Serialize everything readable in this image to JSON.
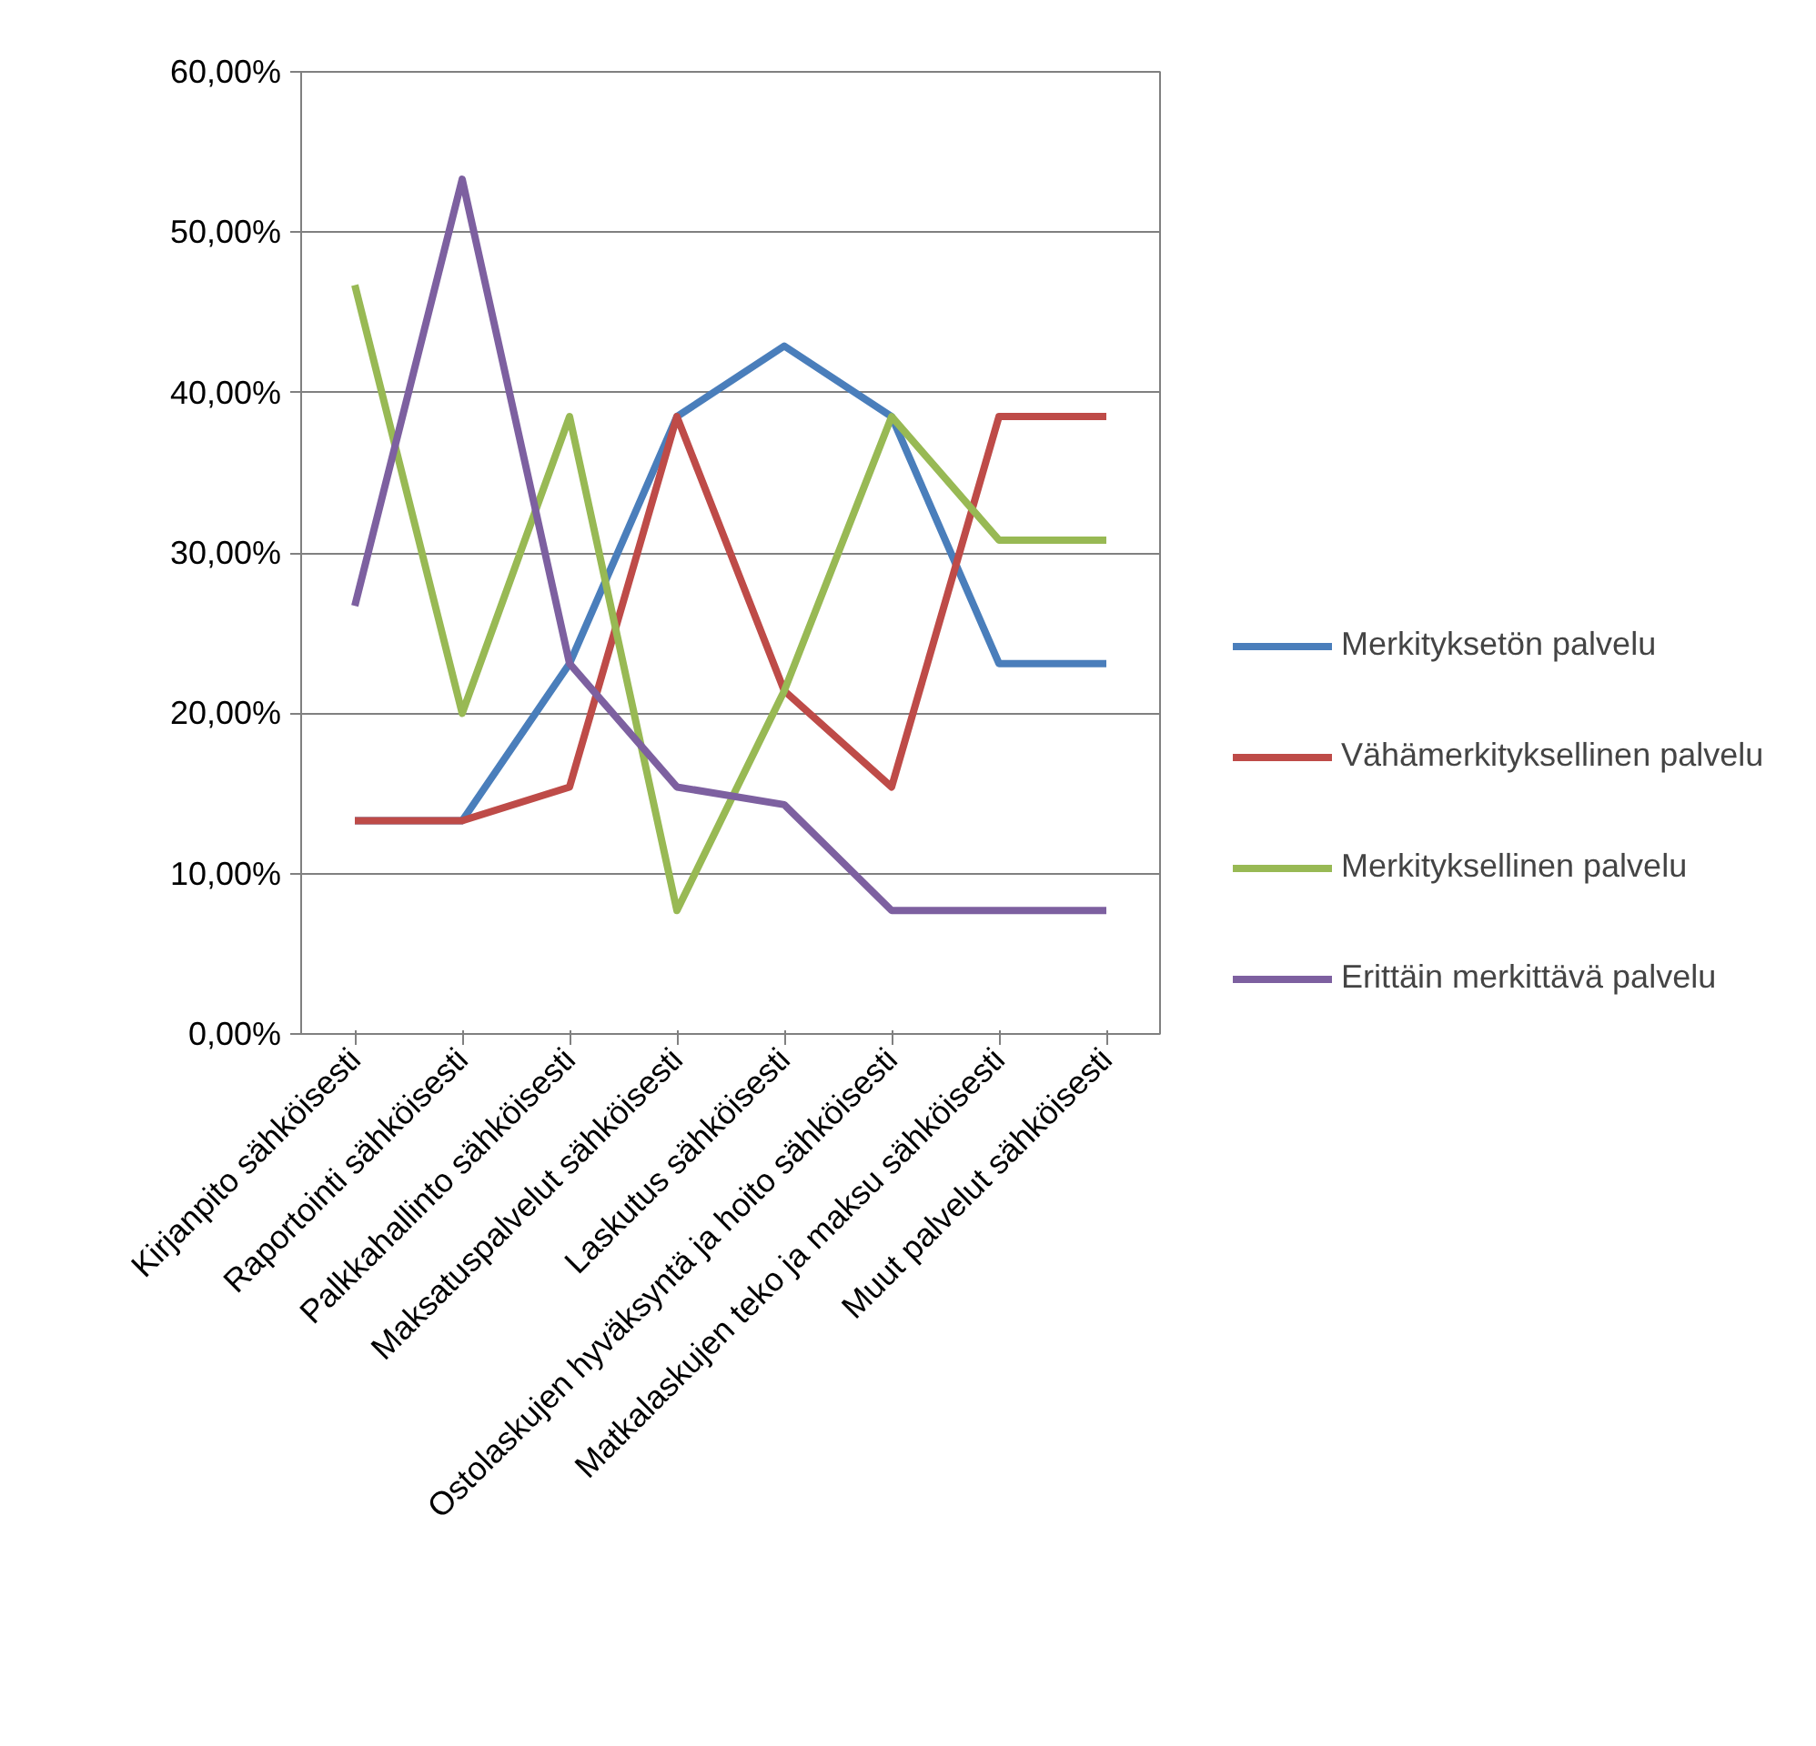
{
  "chart_data": {
    "type": "line",
    "categories": [
      "Kirjanpito sähköisesti",
      "Raportointi sähköisesti",
      "Palkkahallinto sähköisesti",
      "Maksatuspalvelut sähköisesti",
      "Laskutus sähköisesti",
      "Ostolaskujen hyväksyntä ja hoito sähköisesti",
      "Matkalaskujen teko ja maksu sähköisesti",
      "Muut palvelut sähköisesti"
    ],
    "series": [
      {
        "name": "Merkityksetön palvelu",
        "color": "#4a7ebb",
        "values": [
          13.3,
          13.3,
          23.1,
          38.5,
          42.9,
          38.5,
          23.1,
          23.1
        ]
      },
      {
        "name": "Vähämerkityksellinen palvelu",
        "color": "#be4b48",
        "values": [
          13.3,
          13.3,
          15.4,
          38.5,
          21.4,
          15.4,
          38.5,
          38.5
        ]
      },
      {
        "name": "Merkityksellinen palvelu",
        "color": "#98b954",
        "values": [
          46.7,
          20.0,
          38.5,
          7.7,
          21.4,
          38.5,
          30.8,
          30.8
        ]
      },
      {
        "name": "Erittäin merkittävä palvelu",
        "color": "#7d60a0",
        "values": [
          26.7,
          53.3,
          23.1,
          15.4,
          14.3,
          7.7,
          7.7,
          7.7
        ]
      }
    ],
    "ylim": [
      0,
      60
    ],
    "yticks": [
      {
        "value": 0,
        "label": "0,00%"
      },
      {
        "value": 10,
        "label": "10,00%"
      },
      {
        "value": 20,
        "label": "20,00%"
      },
      {
        "value": 30,
        "label": "30,00%"
      },
      {
        "value": 40,
        "label": "40,00%"
      },
      {
        "value": 50,
        "label": "50,00%"
      },
      {
        "value": 60,
        "label": "60,00%"
      }
    ],
    "grid": "y",
    "legend": "right",
    "marker": "none",
    "line_style": "solid"
  }
}
